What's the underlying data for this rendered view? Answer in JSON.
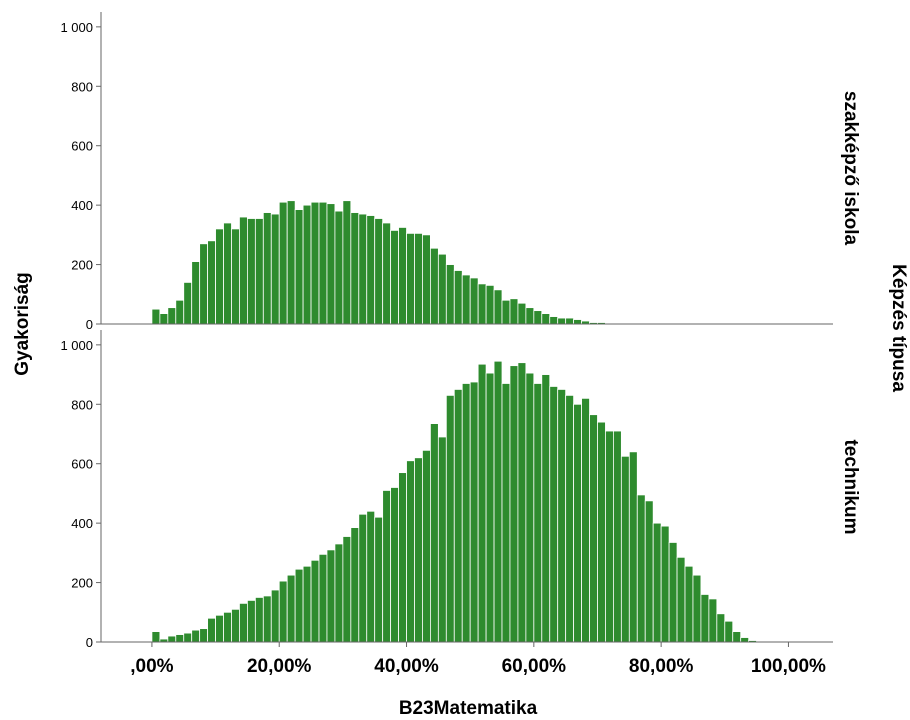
{
  "chart_data": {
    "type": "bar",
    "subtype": "faceted-histogram",
    "xlabel": "B23Matematika",
    "ylabel": "Gyakoriság",
    "facet_title": "Képzés típusa",
    "x_ticks": [
      ",00%",
      "20,00%",
      "40,00%",
      "60,00%",
      "80,00%",
      "100,00%"
    ],
    "x_tick_values": [
      0,
      20,
      40,
      60,
      80,
      100
    ],
    "xlim": [
      -8,
      107
    ],
    "ylim": [
      0,
      1050
    ],
    "y_ticks": [
      0,
      200,
      400,
      600,
      800,
      1000
    ],
    "y_tick_labels": [
      "0",
      "200",
      "400",
      "600",
      "800",
      "1 000"
    ],
    "bin_width": 1.25,
    "bar_color": "#2e8b2e",
    "bar_stroke": "#ffffff",
    "grid": false,
    "panels": [
      {
        "name": "szakképző iskola",
        "bin_start": 0,
        "values": [
          50,
          35,
          55,
          80,
          140,
          210,
          270,
          280,
          320,
          340,
          320,
          360,
          355,
          355,
          375,
          370,
          410,
          415,
          385,
          400,
          410,
          410,
          405,
          380,
          415,
          375,
          370,
          365,
          355,
          340,
          315,
          325,
          305,
          305,
          300,
          255,
          235,
          200,
          180,
          165,
          155,
          135,
          130,
          115,
          80,
          85,
          70,
          55,
          45,
          35,
          25,
          20,
          20,
          15,
          10,
          5,
          5,
          3,
          2,
          2,
          2,
          2,
          1,
          1,
          1
        ]
      },
      {
        "name": "technikum",
        "bin_start": 0,
        "values": [
          35,
          10,
          20,
          25,
          30,
          40,
          45,
          80,
          90,
          100,
          110,
          130,
          140,
          150,
          155,
          175,
          205,
          225,
          245,
          255,
          275,
          295,
          310,
          330,
          355,
          385,
          430,
          440,
          420,
          510,
          520,
          570,
          610,
          620,
          645,
          735,
          690,
          830,
          850,
          870,
          875,
          935,
          905,
          945,
          870,
          930,
          940,
          905,
          870,
          900,
          860,
          850,
          830,
          800,
          820,
          765,
          740,
          710,
          710,
          625,
          640,
          495,
          475,
          400,
          390,
          335,
          285,
          255,
          225,
          160,
          145,
          95,
          70,
          35,
          15,
          5,
          3,
          1,
          1
        ]
      }
    ]
  }
}
